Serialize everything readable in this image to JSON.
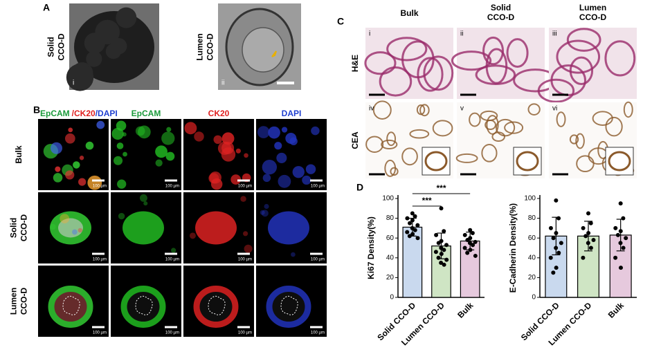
{
  "panel_a": {
    "label": "A",
    "images": [
      {
        "name_lines": [
          "Solid",
          "CCO-D"
        ],
        "numeral": "i"
      },
      {
        "name_lines": [
          "Lumen",
          "CCO-D"
        ],
        "numeral": "ii"
      }
    ]
  },
  "panel_b": {
    "label": "B",
    "header_parts": [
      "EpCAM",
      "/CK20",
      "/DAPI"
    ],
    "columns": [
      "EpCAM",
      "CK20",
      "DAPI"
    ],
    "rows": [
      [
        "Bulk"
      ],
      [
        "Solid",
        "CCO-D"
      ],
      [
        "Lumen",
        "CCO-D"
      ]
    ],
    "scale_label": "100 µm"
  },
  "panel_c": {
    "label": "C",
    "columns": [
      [
        "Bulk"
      ],
      [
        "Solid",
        "CCO-D"
      ],
      [
        "Lumen",
        "CCO-D"
      ]
    ],
    "rows": [
      "H&E",
      "CEA"
    ],
    "numerals": [
      "i",
      "ii",
      "iii",
      "iv",
      "v",
      "vi"
    ]
  },
  "panel_d": {
    "label": "D"
  },
  "chart_data": [
    {
      "type": "bar",
      "ylabel": "Ki67 Density(%)",
      "categories": [
        "Solid CCO-D",
        "Lumen CCO-D",
        "Bulk"
      ],
      "values": [
        71,
        52,
        57
      ],
      "errors": [
        9,
        13,
        9
      ],
      "colors": [
        "#c9d9ee",
        "#cfe5c4",
        "#e6c9dd"
      ],
      "points": [
        [
          85,
          82,
          80,
          78,
          75,
          73,
          70,
          68,
          66,
          64,
          62,
          60
        ],
        [
          90,
          67,
          63,
          57,
          55,
          53,
          50,
          48,
          46,
          44,
          40,
          38,
          35,
          33
        ],
        [
          68,
          65,
          63,
          60,
          58,
          56,
          55,
          53,
          50,
          48,
          45,
          42
        ]
      ],
      "ylim": [
        0,
        100
      ],
      "yticks": [
        0,
        20,
        40,
        60,
        80,
        100
      ],
      "significance": [
        "***",
        "***"
      ]
    },
    {
      "type": "bar",
      "ylabel": "E-Cadherin Density(%)",
      "categories": [
        "Solid CCO-D",
        "Lumen CCO-D",
        "Bulk"
      ],
      "values": [
        62,
        62,
        63
      ],
      "errors": [
        19,
        15,
        16
      ],
      "colors": [
        "#c9d9ee",
        "#cfe5c4",
        "#e6c9dd"
      ],
      "points": [
        [
          98,
          80,
          70,
          65,
          60,
          55,
          50,
          45,
          40,
          30,
          25
        ],
        [
          85,
          75,
          70,
          65,
          62,
          58,
          55,
          50,
          40
        ],
        [
          95,
          80,
          70,
          67,
          63,
          60,
          55,
          50,
          40,
          30
        ]
      ],
      "ylim": [
        0,
        100
      ],
      "yticks": [
        0,
        20,
        40,
        60,
        80,
        100
      ]
    }
  ]
}
